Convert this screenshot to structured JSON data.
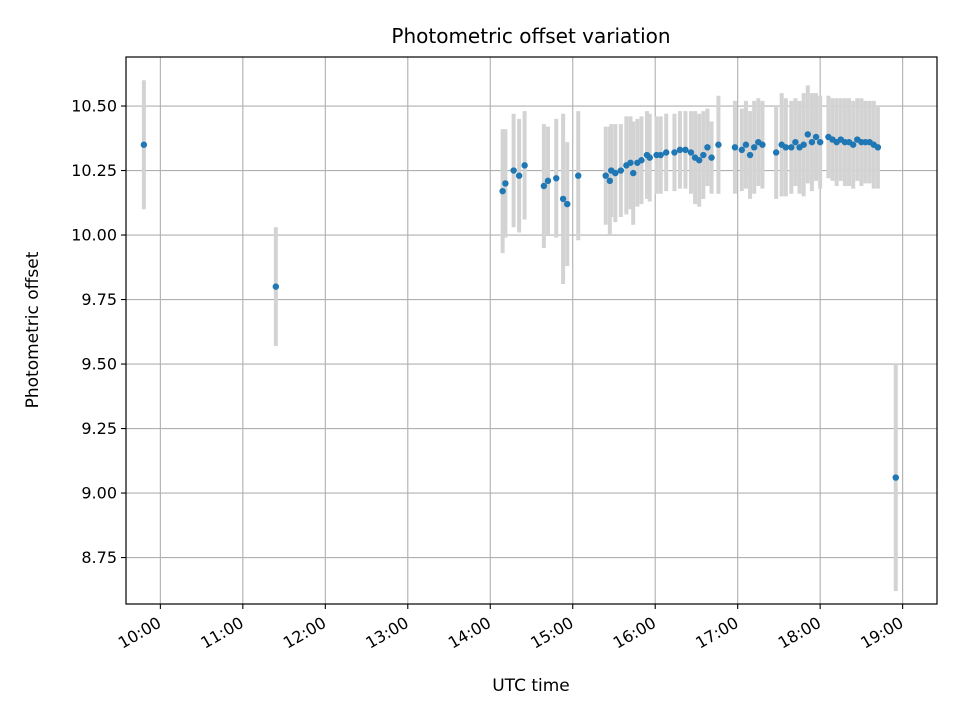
{
  "chart_data": {
    "type": "scatter",
    "title": "Photometric offset variation",
    "xlabel": "UTC time",
    "ylabel": "Photometric offset",
    "x_ticks": [
      "10:00",
      "11:00",
      "12:00",
      "13:00",
      "14:00",
      "15:00",
      "16:00",
      "17:00",
      "18:00",
      "19:00"
    ],
    "y_ticks": [
      "8.75",
      "9.00",
      "9.25",
      "9.50",
      "9.75",
      "10.00",
      "10.25",
      "10.50"
    ],
    "xlim": [
      "09:35",
      "19:25"
    ],
    "ylim": [
      8.57,
      10.69
    ],
    "grid": true,
    "colors": {
      "points": "#1f77b4",
      "errorbars": "#d3d3d3",
      "grid": "#b0b0b0"
    },
    "series": [
      {
        "x": [
          "09:48",
          "11:24",
          "14:09",
          "14:11",
          "14:17",
          "14:21",
          "14:25",
          "14:39",
          "14:42",
          "14:48",
          "14:53",
          "14:56",
          "15:04",
          "15:24",
          "15:27",
          "15:28",
          "15:31",
          "15:35",
          "15:39",
          "15:42",
          "15:44",
          "15:47",
          "15:50",
          "15:54",
          "15:56",
          "16:01",
          "16:04",
          "16:08",
          "16:14",
          "16:18",
          "16:22",
          "16:26",
          "16:29",
          "16:32",
          "16:35",
          "16:38",
          "16:41",
          "16:46",
          "16:58",
          "17:03",
          "17:06",
          "17:09",
          "17:12",
          "17:15",
          "17:18",
          "17:28",
          "17:32",
          "17:35",
          "17:39",
          "17:42",
          "17:45",
          "17:48",
          "17:51",
          "17:54",
          "17:57",
          "18:00",
          "18:06",
          "18:09",
          "18:12",
          "18:15",
          "18:18",
          "18:21",
          "18:24",
          "18:27",
          "18:30",
          "18:33",
          "18:36",
          "18:39",
          "18:42",
          "18:55"
        ],
        "y": [
          10.35,
          9.8,
          10.17,
          10.2,
          10.25,
          10.23,
          10.27,
          10.19,
          10.21,
          10.22,
          10.14,
          10.12,
          10.23,
          10.23,
          10.21,
          10.25,
          10.24,
          10.25,
          10.27,
          10.28,
          10.24,
          10.28,
          10.29,
          10.31,
          10.3,
          10.31,
          10.31,
          10.32,
          10.32,
          10.33,
          10.33,
          10.32,
          10.3,
          10.29,
          10.31,
          10.34,
          10.3,
          10.35,
          10.34,
          10.33,
          10.35,
          10.31,
          10.34,
          10.36,
          10.35,
          10.32,
          10.35,
          10.34,
          10.34,
          10.36,
          10.34,
          10.35,
          10.39,
          10.36,
          10.38,
          10.36,
          10.38,
          10.37,
          10.36,
          10.37,
          10.36,
          10.36,
          10.35,
          10.37,
          10.36,
          10.36,
          10.36,
          10.35,
          10.34,
          9.06
        ],
        "error": [
          0.25,
          0.23,
          0.24,
          0.21,
          0.22,
          0.22,
          0.21,
          0.24,
          0.21,
          0.23,
          0.33,
          0.24,
          0.25,
          0.19,
          0.21,
          0.18,
          0.19,
          0.18,
          0.19,
          0.18,
          0.2,
          0.17,
          0.17,
          0.17,
          0.17,
          0.15,
          0.15,
          0.15,
          0.15,
          0.15,
          0.15,
          0.16,
          0.18,
          0.18,
          0.17,
          0.15,
          0.14,
          0.19,
          0.18,
          0.16,
          0.17,
          0.17,
          0.18,
          0.17,
          0.17,
          0.18,
          0.2,
          0.19,
          0.18,
          0.17,
          0.18,
          0.2,
          0.19,
          0.19,
          0.17,
          0.18,
          0.16,
          0.16,
          0.17,
          0.16,
          0.17,
          0.17,
          0.17,
          0.16,
          0.17,
          0.16,
          0.16,
          0.17,
          0.16,
          0.44
        ]
      }
    ]
  }
}
